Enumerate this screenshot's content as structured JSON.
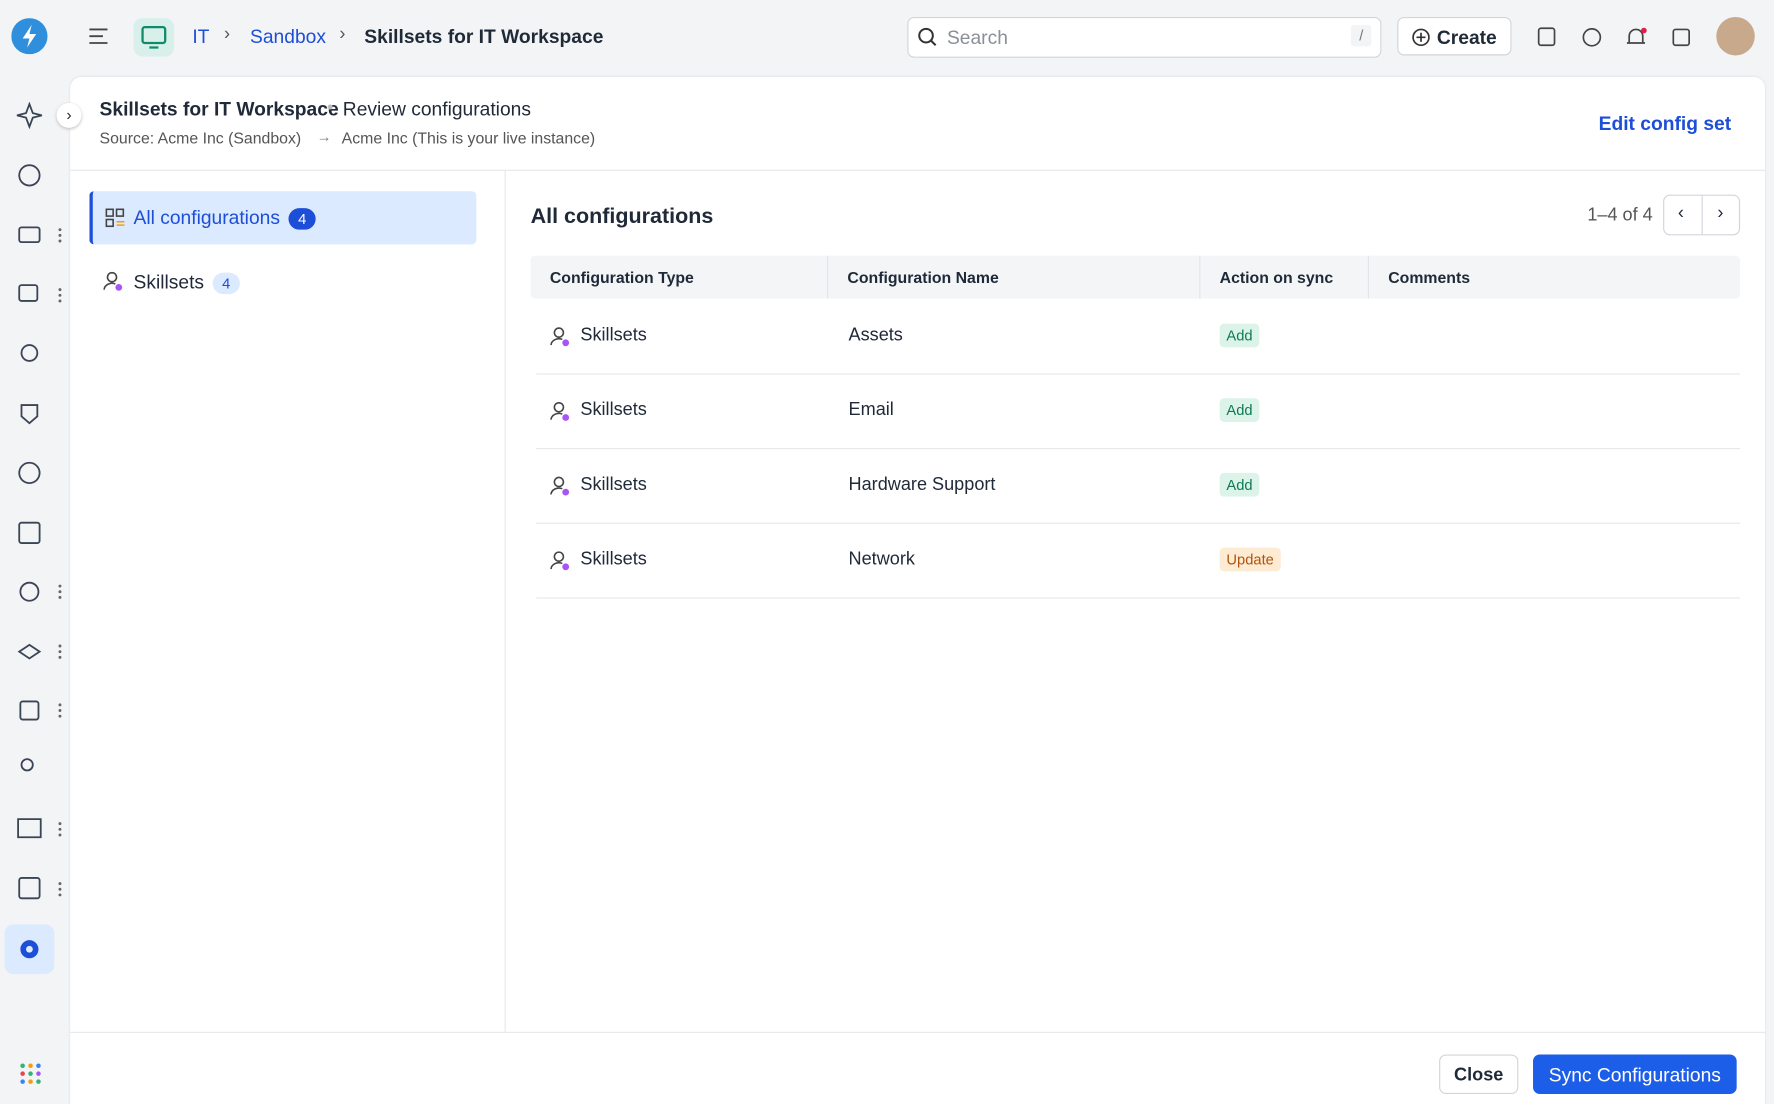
{
  "topbar": {
    "breadcrumbs": [
      "IT",
      "Sandbox",
      "Skillsets for IT Workspace"
    ],
    "search_placeholder": "Search",
    "search_shortcut": "/",
    "create": "Create"
  },
  "header": {
    "title": "Skillsets for IT Workspace",
    "subtitle": "Review configurations",
    "source": "Source: Acme Inc (Sandbox)",
    "target": "Acme Inc (This is your live instance)",
    "edit": "Edit config set"
  },
  "nav": [
    {
      "label": "All configurations",
      "count": 4
    },
    {
      "label": "Skillsets",
      "count": 4
    }
  ],
  "table": {
    "title": "All configurations",
    "pagination": "1–4 of 4",
    "columns": [
      "Configuration Type",
      "Configuration Name",
      "Action on sync",
      "Comments"
    ],
    "rows": [
      [
        "Skillsets",
        "Assets",
        "Add"
      ],
      [
        "Skillsets",
        "Email",
        "Add"
      ],
      [
        "Skillsets",
        "Hardware Support",
        "Add"
      ],
      [
        "Skillsets",
        "Network",
        "Update"
      ]
    ]
  },
  "footer": {
    "close": "Close",
    "sync": "Sync Configurations"
  }
}
